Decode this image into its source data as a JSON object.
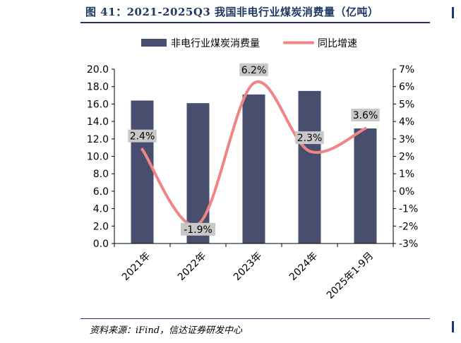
{
  "figure": {
    "title": "图 41：2021-2025Q3 我国非电行业煤炭消费量（亿吨）",
    "source": "资料来源：iFind，信达证券研发中心"
  },
  "colors": {
    "bar": "#474e6e",
    "line": "#f08585",
    "label_box": "#c8c8c8",
    "title": "#1f3864"
  },
  "chart_data": {
    "type": "bar",
    "categories": [
      "2021年",
      "2022年",
      "2023年",
      "2024年",
      "2025年1-9月"
    ],
    "series": [
      {
        "name": "非电行业煤炭消费量",
        "type": "bar",
        "axis": "left",
        "values": [
          16.4,
          16.1,
          17.1,
          17.5,
          13.2
        ]
      },
      {
        "name": "同比增速",
        "type": "line",
        "axis": "right",
        "values": [
          2.4,
          -1.9,
          6.2,
          2.3,
          3.6
        ],
        "labels": [
          "2.4%",
          "-1.9%",
          "6.2%",
          "2.3%",
          "3.6%"
        ]
      }
    ],
    "y_left": {
      "min": 0,
      "max": 20,
      "step": 2,
      "ticks": [
        "0.0",
        "2.0",
        "4.0",
        "6.0",
        "8.0",
        "10.0",
        "12.0",
        "14.0",
        "16.0",
        "18.0",
        "20.0"
      ]
    },
    "y_right": {
      "min": -3,
      "max": 7,
      "step": 1,
      "ticks": [
        "-3%",
        "-2%",
        "-1%",
        "0%",
        "1%",
        "2%",
        "3%",
        "4%",
        "5%",
        "6%",
        "7%"
      ]
    },
    "legend": "top",
    "grid": false
  }
}
